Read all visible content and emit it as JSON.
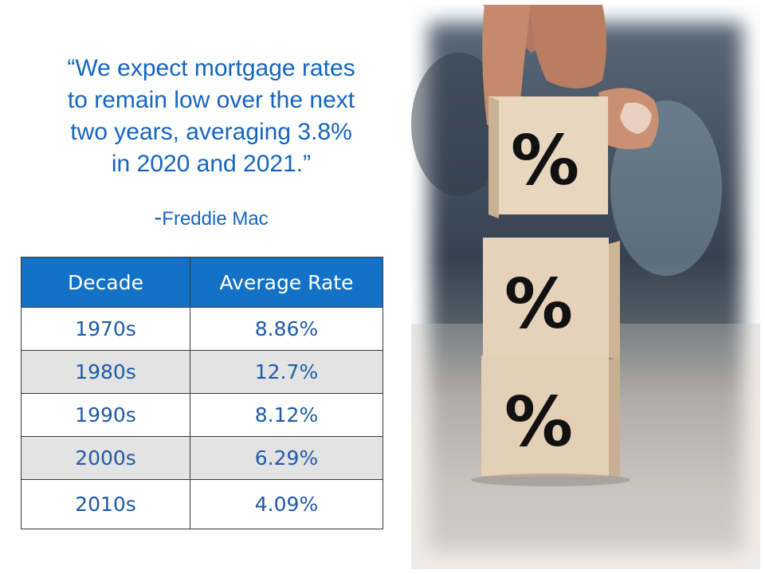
{
  "quote": {
    "lines": [
      "“We expect mortgage rates",
      "to remain low over the next",
      "two years, averaging 3.8%",
      "in 2020 and 2021.”"
    ],
    "dash": "-",
    "attribution": "Freddie Mac"
  },
  "table": {
    "headers": [
      "Decade",
      "Average Rate"
    ],
    "rows": [
      [
        "1970s",
        "8.86%"
      ],
      [
        "1980s",
        "12.7%"
      ],
      [
        "1990s",
        "8.12%"
      ],
      [
        "2000s",
        "6.29%"
      ],
      [
        "2010s",
        "4.09%"
      ]
    ]
  },
  "photo": {
    "block_symbols": [
      "%",
      "%",
      "%"
    ]
  },
  "colors": {
    "quote_text": "#1565c0",
    "table_header_bg": "#1472c6",
    "table_text": "#1f5aa8",
    "alt_row_bg": "#e3e3e3"
  }
}
